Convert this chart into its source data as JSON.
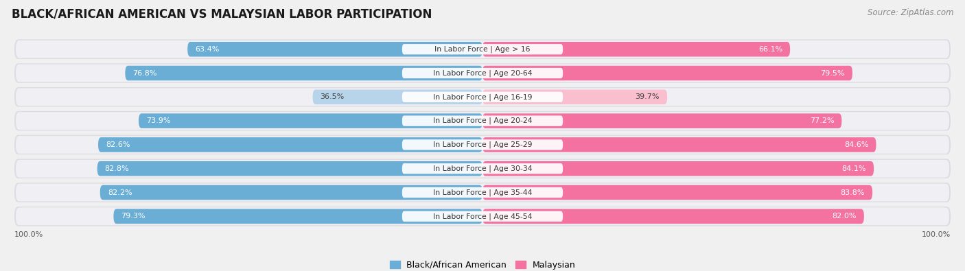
{
  "title": "BLACK/AFRICAN AMERICAN VS MALAYSIAN LABOR PARTICIPATION",
  "source": "Source: ZipAtlas.com",
  "categories": [
    "In Labor Force | Age > 16",
    "In Labor Force | Age 20-64",
    "In Labor Force | Age 16-19",
    "In Labor Force | Age 20-24",
    "In Labor Force | Age 25-29",
    "In Labor Force | Age 30-34",
    "In Labor Force | Age 35-44",
    "In Labor Force | Age 45-54"
  ],
  "black_values": [
    63.4,
    76.8,
    36.5,
    73.9,
    82.6,
    82.8,
    82.2,
    79.3
  ],
  "malaysian_values": [
    66.1,
    79.5,
    39.7,
    77.2,
    84.6,
    84.1,
    83.8,
    82.0
  ],
  "black_color": "#6AAED6",
  "black_color_light": "#B8D4EA",
  "malaysian_color": "#F472A0",
  "malaysian_color_light": "#F9BFCF",
  "row_bg": "#E8E8EC",
  "title_fontsize": 12,
  "label_fontsize": 7.8,
  "value_fontsize": 8.0,
  "legend_fontsize": 9
}
